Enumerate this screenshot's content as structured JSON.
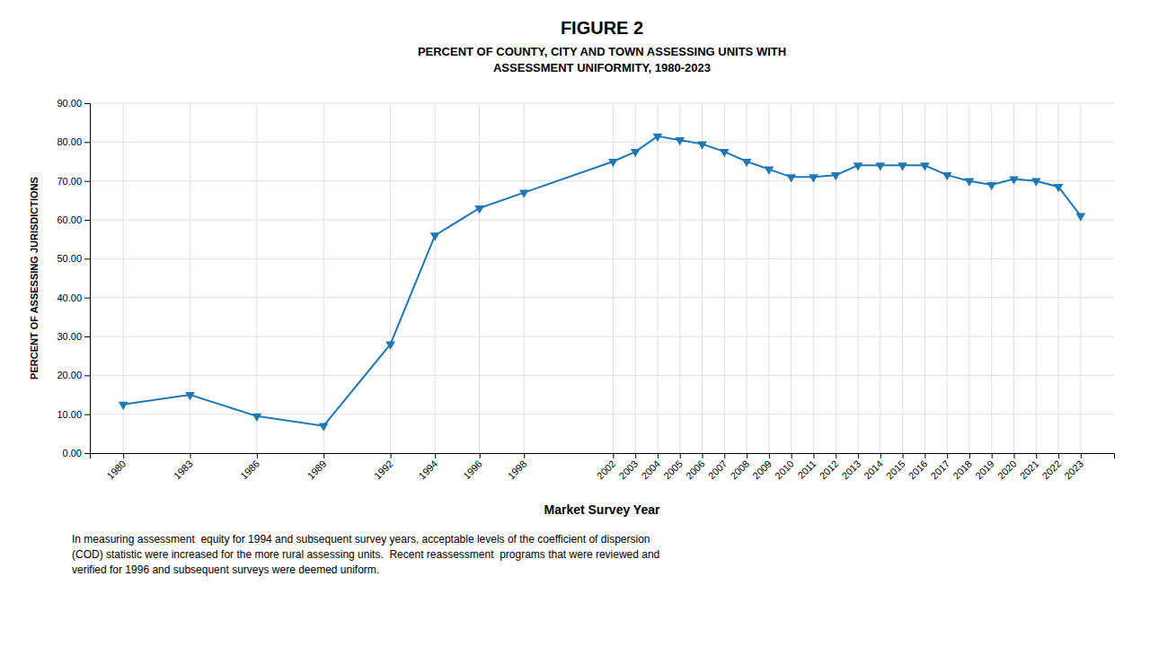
{
  "chart_data": {
    "type": "line",
    "title": "FIGURE 2",
    "subtitle": [
      "PERCENT OF COUNTY, CITY AND TOWN ASSESSING UNITS WITH",
      "ASSESSMENT UNIFORMITY, 1980-2023"
    ],
    "x_label": "Market Survey Year",
    "y_label": "PERCENT OF ASSESSING JURISDICTIONS",
    "annotations": [
      "In measuring assessment  equity for 1994 and subsequent survey years, acceptable levels of the coefficient of dispersion",
      "(COD) statistic were increased for the more rural assessing units.  Recent reassessment  programs that were reviewed and",
      "verified for 1996 and subsequent surveys were deemed uniform."
    ],
    "x": [
      1980,
      1983,
      1986,
      1989,
      1992,
      1994,
      1996,
      1998,
      2002,
      2003,
      2004,
      2005,
      2006,
      2007,
      2008,
      2009,
      2010,
      2011,
      2012,
      2013,
      2014,
      2015,
      2016,
      2017,
      2018,
      2019,
      2020,
      2021,
      2022,
      2023
    ],
    "values": [
      12.5,
      15.0,
      9.5,
      7.0,
      28.0,
      56.0,
      63.0,
      67.0,
      75.0,
      77.5,
      81.5,
      80.5,
      79.5,
      77.5,
      75.0,
      73.0,
      71.0,
      71.0,
      71.5,
      74.0,
      74.0,
      74.0,
      74.0,
      71.5,
      70.0,
      69.0,
      70.5,
      70.0,
      68.5,
      61.0
    ],
    "marker": "triangle-down",
    "xlim": [
      1978.5,
      2024.5
    ],
    "xticks": [
      1980,
      1983,
      1986,
      1989,
      1992,
      1994,
      1996,
      1998,
      2002,
      2003,
      2004,
      2005,
      2006,
      2007,
      2008,
      2009,
      2010,
      2011,
      2012,
      2013,
      2014,
      2015,
      2016,
      2017,
      2018,
      2019,
      2020,
      2021,
      2022,
      2023
    ],
    "ylim": [
      0,
      90
    ],
    "yticks": [
      {
        "value": 0,
        "label": "0.00"
      },
      {
        "value": 10,
        "label": "10.00"
      },
      {
        "value": 20,
        "label": "20.00"
      },
      {
        "value": 30,
        "label": "30.00"
      },
      {
        "value": 40,
        "label": "40.00"
      },
      {
        "value": 50,
        "label": "50.00"
      },
      {
        "value": 60,
        "label": "60.00"
      },
      {
        "value": 70,
        "label": "70.00"
      },
      {
        "value": 80,
        "label": "80.00"
      },
      {
        "value": 90,
        "label": "90.00"
      }
    ],
    "grid": true
  }
}
